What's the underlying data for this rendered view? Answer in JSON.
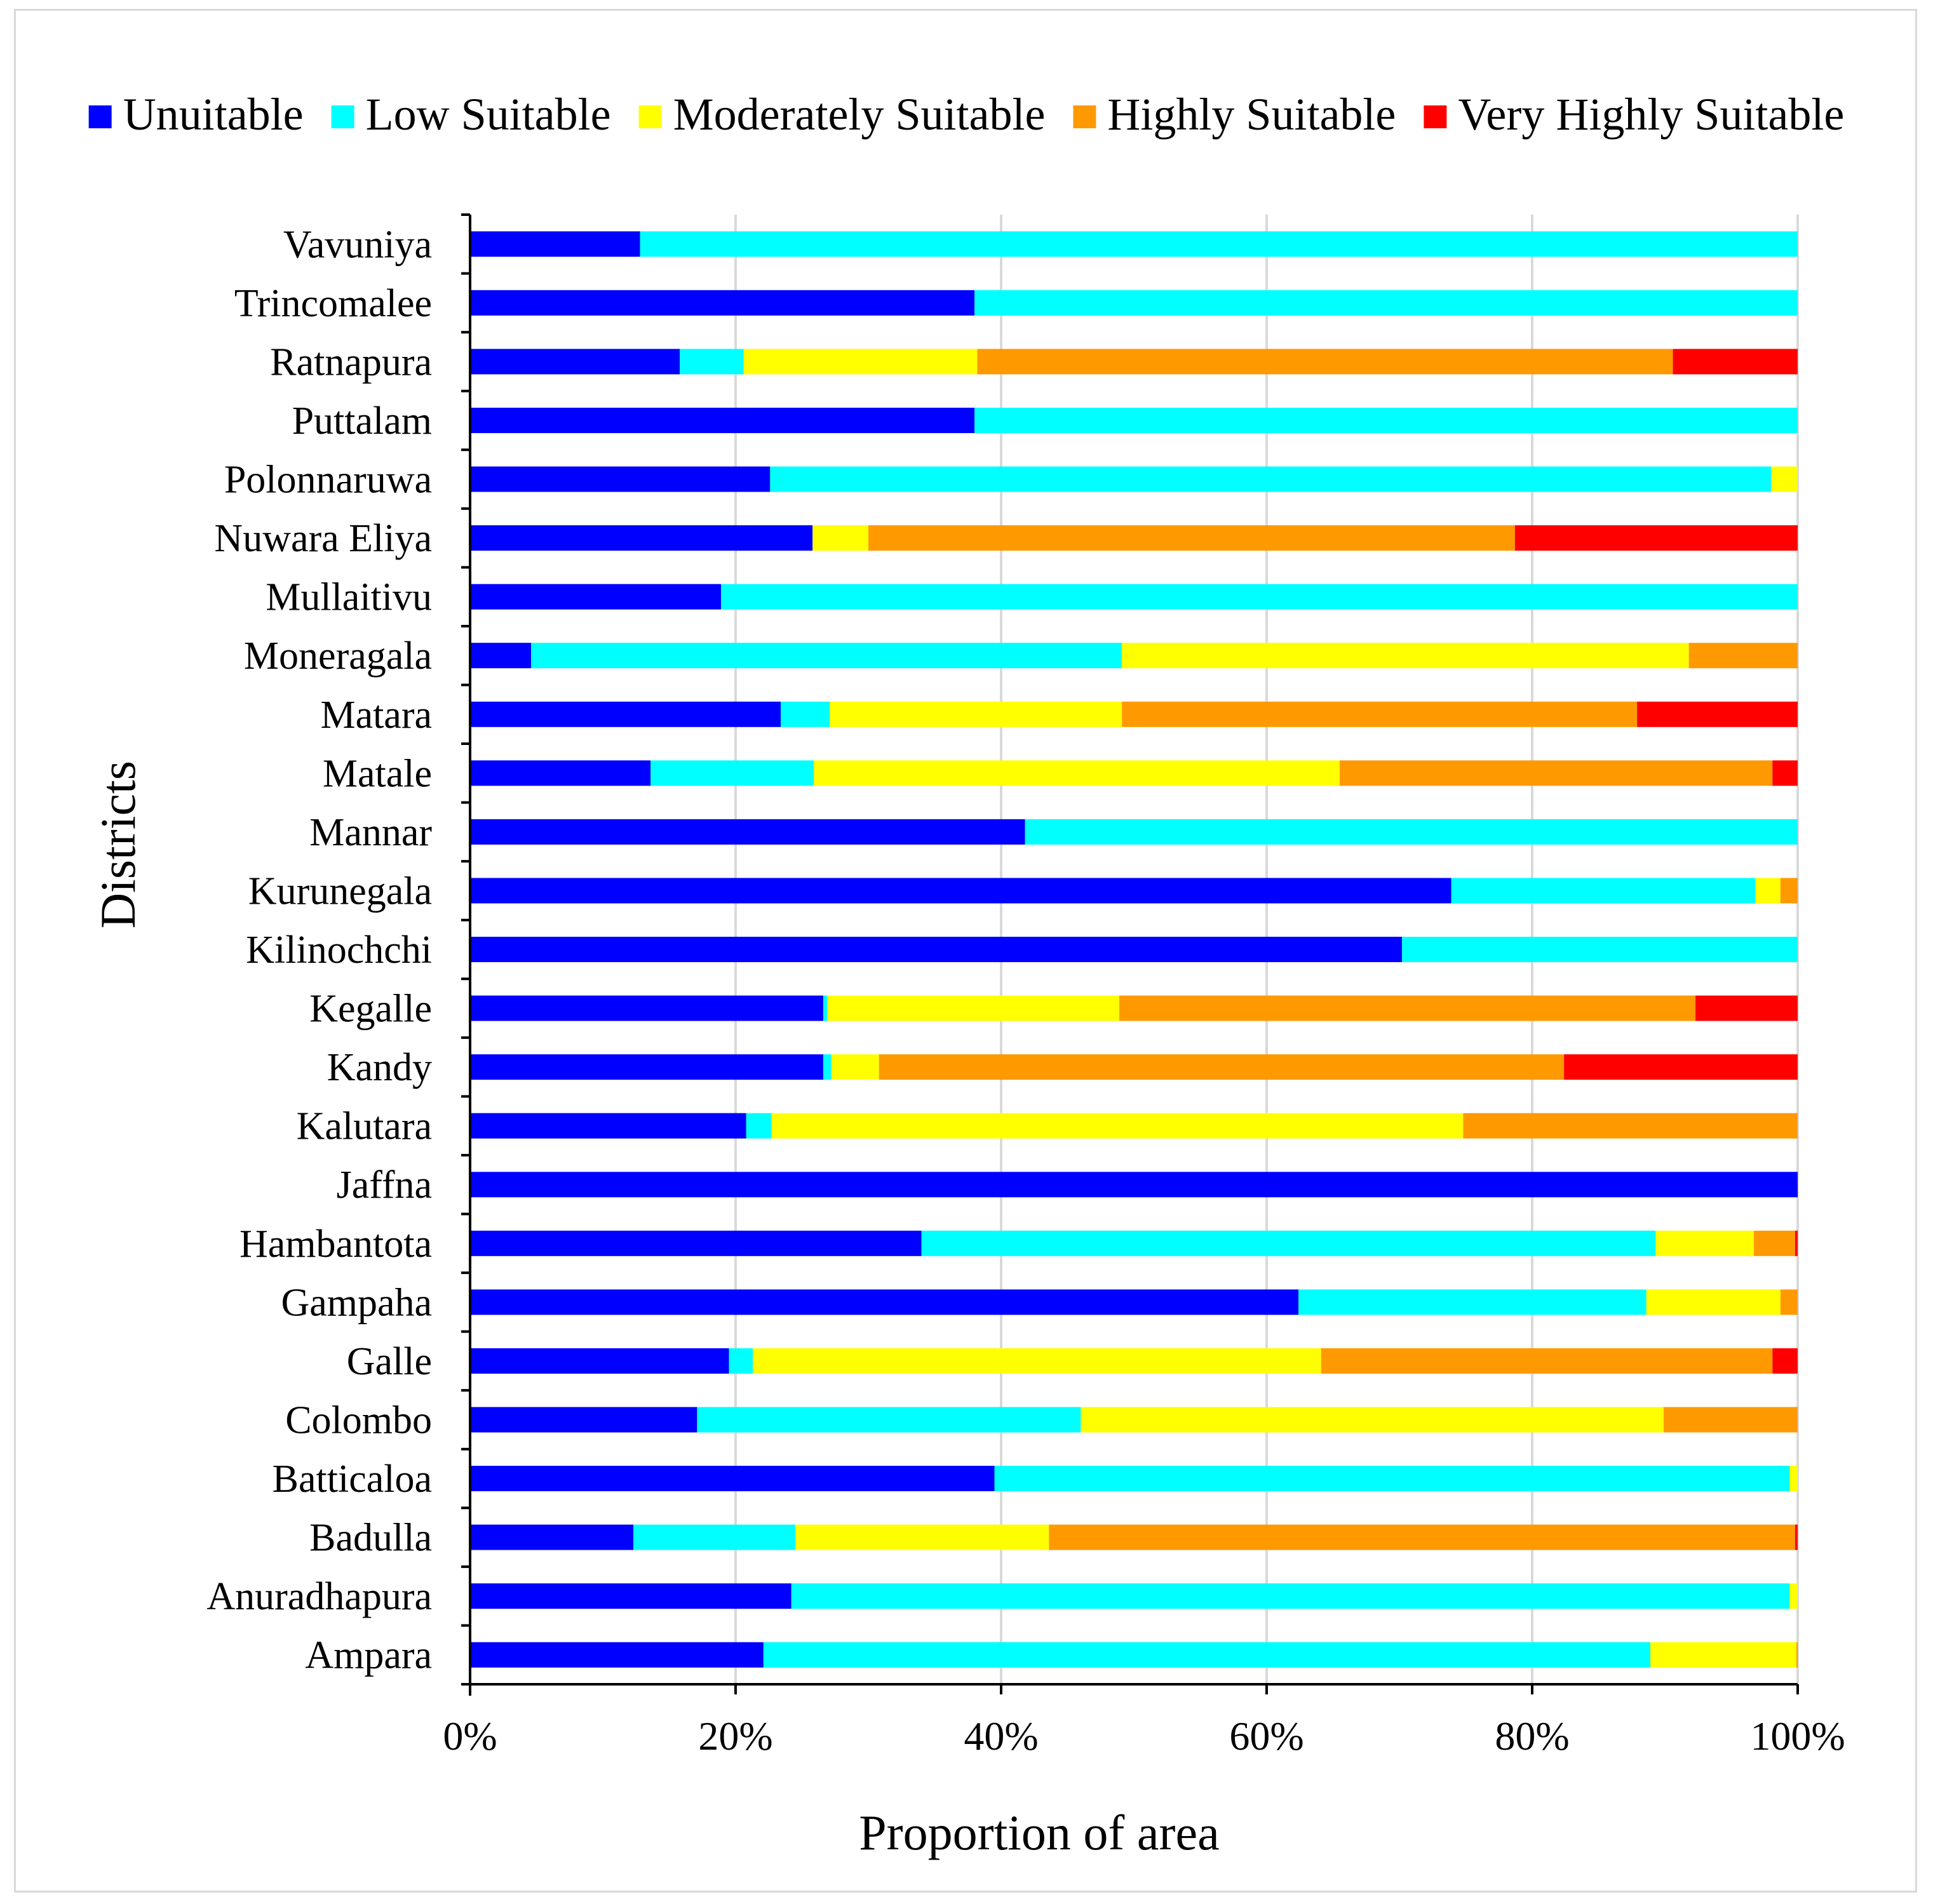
{
  "chart_data": {
    "type": "bar",
    "orientation": "horizontal",
    "stacked": true,
    "normalized": true,
    "xlabel": "Proportion  of area",
    "ylabel": "Districts",
    "xlim": [
      0,
      100
    ],
    "x_ticks": [
      "0%",
      "20%",
      "40%",
      "60%",
      "80%",
      "100%"
    ],
    "grid": true,
    "legend_position": "top",
    "categories": [
      "Vavuniya",
      "Trincomalee",
      "Ratnapura",
      "Puttalam",
      "Polonnaruwa",
      "Nuwara Eliya",
      "Mullaitivu",
      "Moneragala",
      "Matara",
      "Matale",
      "Mannar",
      "Kurunegala",
      "Kilinochchi",
      "Kegalle",
      "Kandy",
      "Kalutara",
      "Jaffna",
      "Hambantota",
      "Gampaha",
      "Galle",
      "Colombo",
      "Batticaloa",
      "Badulla",
      "Anuradhapura",
      "Ampara"
    ],
    "series": [
      {
        "name": "Unuitable",
        "color": "#0000FF",
        "values": [
          12.8,
          38,
          15.8,
          38,
          22.6,
          25.8,
          18.9,
          4.6,
          23.4,
          13.6,
          41.8,
          73.9,
          70.2,
          26.6,
          26.6,
          20.8,
          100,
          34,
          62.4,
          19.5,
          17.1,
          39.5,
          12.3,
          24.2,
          22.1
        ]
      },
      {
        "name": "Low Suitable",
        "color": "#00FFFF",
        "values": [
          87.2,
          62,
          4.8,
          62,
          75.4,
          0,
          81.1,
          44.5,
          3.7,
          12.3,
          58.2,
          22.9,
          29.8,
          0.3,
          0.6,
          1.9,
          0,
          55.3,
          26.2,
          1.8,
          28.9,
          59.9,
          12.2,
          75.2,
          66.8
        ]
      },
      {
        "name": "Moderately Suitable",
        "color": "#FFFF00",
        "values": [
          0,
          0,
          17.6,
          0,
          2.0,
          4.2,
          0,
          42.7,
          22.0,
          39.6,
          0,
          1.9,
          0,
          22.0,
          3.6,
          52.1,
          0,
          7.4,
          10.1,
          42.8,
          43.9,
          0.6,
          19.1,
          0.6,
          11.0
        ]
      },
      {
        "name": "Highly Suitable",
        "color": "#FF9900",
        "values": [
          0,
          0,
          52.4,
          0,
          0,
          48.7,
          0,
          8.2,
          38.8,
          32.6,
          0,
          1.3,
          0,
          43.4,
          51.6,
          25.2,
          0,
          3.1,
          1.3,
          34.0,
          10.1,
          0,
          56.2,
          0,
          0.1
        ]
      },
      {
        "name": "Very Highly Suitable",
        "color": "#FF0000",
        "values": [
          0,
          0,
          9.4,
          0,
          0,
          21.3,
          0,
          0,
          12.1,
          1.9,
          0,
          0,
          0,
          7.7,
          17.6,
          0,
          0,
          0.2,
          0,
          1.9,
          0,
          0,
          0.2,
          0,
          0
        ]
      }
    ]
  }
}
